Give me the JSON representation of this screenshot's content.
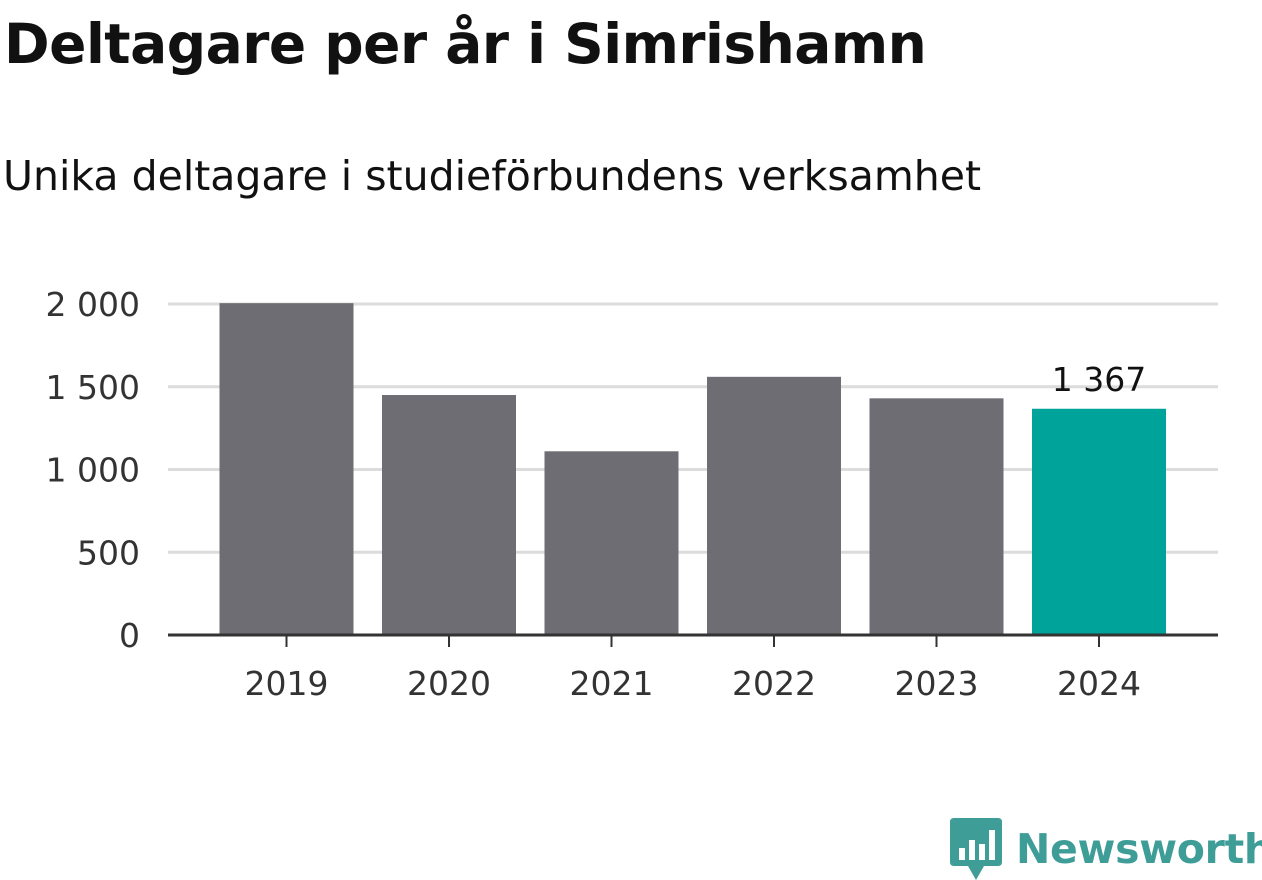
{
  "title": "Deltagare per år i Simrishamn",
  "subtitle": "Unika deltagare i studieförbundens verksamhet",
  "brand": {
    "name": "Newsworthy",
    "icon": "newsworthy-chart-bubble-icon",
    "color": "#3f9d98"
  },
  "colors": {
    "bar": "#6e6d73",
    "highlight": "#00a39a",
    "grid": "#dcdcdc",
    "axis": "#333333"
  },
  "chart_data": {
    "type": "bar",
    "categories": [
      "2019",
      "2020",
      "2021",
      "2022",
      "2023",
      "2024"
    ],
    "values": [
      2005,
      1450,
      1110,
      1560,
      1430,
      1367
    ],
    "highlight_index": 5,
    "data_labels": [
      {
        "index": 5,
        "text": "1 367"
      }
    ],
    "yticks": [
      0,
      500,
      1000,
      1500,
      2000
    ],
    "ytick_labels": [
      "0",
      "500",
      "1 000",
      "1 500",
      "2 000"
    ],
    "ylim": [
      0,
      2000
    ],
    "grid": true,
    "xlabel": "",
    "ylabel": ""
  }
}
